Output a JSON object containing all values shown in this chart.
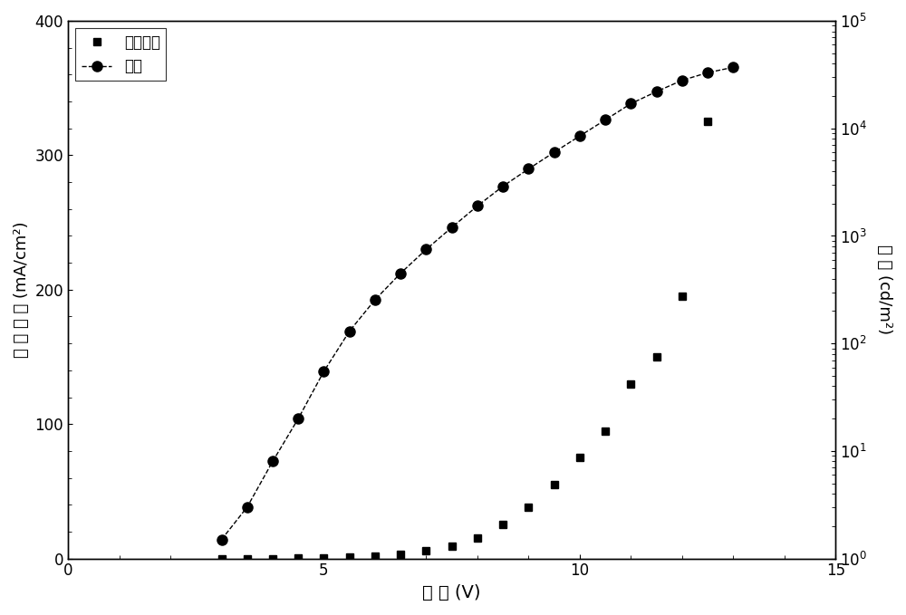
{
  "xlabel": "电 压 (V)",
  "ylabel_left": "电 流 密 度 (mA/cm²)",
  "ylabel_right": "亮 度 (cd/m²)",
  "xlim": [
    0,
    15
  ],
  "ylim_left": [
    0,
    400
  ],
  "ylim_right": [
    1.0,
    100000.0
  ],
  "xticks": [
    0,
    5,
    10,
    15
  ],
  "yticks_left": [
    0,
    100,
    200,
    300,
    400
  ],
  "legend_label1": "电流密度",
  "legend_label2": "亮度",
  "current_density_x": [
    3.0,
    3.5,
    4.0,
    4.5,
    5.0,
    5.5,
    6.0,
    6.5,
    7.0,
    7.5,
    8.0,
    8.5,
    9.0,
    9.5,
    10.0,
    10.5,
    11.0,
    11.5,
    12.0,
    12.5
  ],
  "current_density_y": [
    0.0,
    0.0,
    0.0,
    0.1,
    0.3,
    0.8,
    1.5,
    3.0,
    5.5,
    9.0,
    15.0,
    25.0,
    38.0,
    55.0,
    75.0,
    95.0,
    130.0,
    150.0,
    195.0,
    325.0
  ],
  "luminance_x": [
    3.0,
    3.5,
    4.0,
    4.5,
    5.0,
    5.5,
    6.0,
    6.5,
    7.0,
    7.5,
    8.0,
    8.5,
    9.0,
    9.5,
    10.0,
    10.5,
    11.0,
    11.5,
    12.0,
    12.5,
    13.0
  ],
  "luminance_y": [
    1.5,
    3.0,
    8.0,
    20.0,
    55.0,
    130.0,
    255.0,
    450.0,
    750.0,
    1200.0,
    1900.0,
    2900.0,
    4200.0,
    6000.0,
    8500.0,
    12000.0,
    17000.0,
    22000.0,
    28000.0,
    33000.0,
    37000.0
  ],
  "background_color": "#ffffff",
  "marker_color": "#000000"
}
